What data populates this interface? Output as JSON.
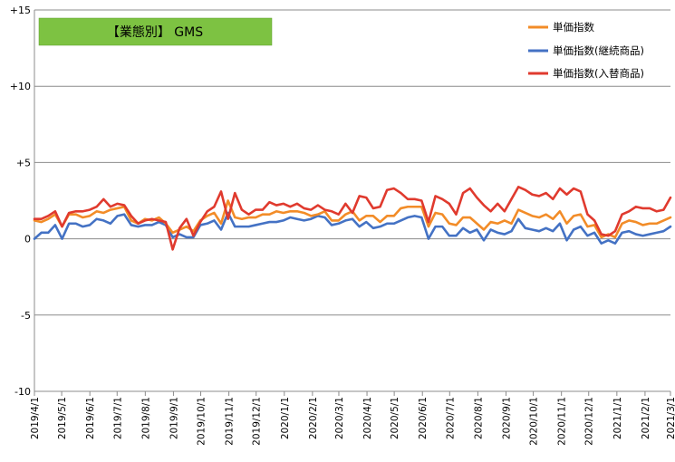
{
  "chart_data": {
    "type": "line",
    "tag_label": "【業態別】 GMS",
    "ylim": [
      -10,
      15
    ],
    "yticks": [
      15,
      10,
      5,
      0,
      -5,
      -10
    ],
    "ytick_labels": [
      "+15",
      "+10",
      "+5",
      "0",
      "-5",
      "-10"
    ],
    "xticks": [
      "2019/4/1",
      "2019/5/1",
      "2019/6/1",
      "2019/7/1",
      "2019/8/1",
      "2019/9/1",
      "2019/10/1",
      "2019/11/1",
      "2019/12/1",
      "2020/1/1",
      "2020/2/1",
      "2020/3/1",
      "2020/4/1",
      "2020/5/1",
      "2020/6/1",
      "2020/7/1",
      "2020/8/1",
      "2020/9/1",
      "2020/10/1",
      "2020/11/1",
      "2020/12/1",
      "2021/1/1",
      "2021/2/1",
      "2021/3/1"
    ],
    "x_start": "2019/4/1",
    "x_end": "2021/3/1",
    "grid": "horizontal",
    "legend_position": "top-right",
    "series": [
      {
        "name": "単価指数",
        "color": "#F28C28",
        "values": [
          1.2,
          1.1,
          1.3,
          1.6,
          0.8,
          1.6,
          1.6,
          1.4,
          1.5,
          1.8,
          1.7,
          1.9,
          2.0,
          2.1,
          1.2,
          1.0,
          1.3,
          1.2,
          1.4,
          1.0,
          0.4,
          0.6,
          0.8,
          0.5,
          1.2,
          1.5,
          1.7,
          1.0,
          2.5,
          1.4,
          1.3,
          1.4,
          1.4,
          1.6,
          1.6,
          1.8,
          1.7,
          1.8,
          1.8,
          1.7,
          1.5,
          1.6,
          1.8,
          1.2,
          1.2,
          1.6,
          1.8,
          1.2,
          1.5,
          1.5,
          1.1,
          1.5,
          1.5,
          2.0,
          2.1,
          2.1,
          2.1,
          0.8,
          1.7,
          1.6,
          1.0,
          0.9,
          1.4,
          1.4,
          1.0,
          0.6,
          1.1,
          1.0,
          1.2,
          1.0,
          1.9,
          1.7,
          1.5,
          1.4,
          1.6,
          1.3,
          1.8,
          1.0,
          1.5,
          1.6,
          0.8,
          0.9,
          0.1,
          0.3,
          0.1,
          1.0,
          1.2,
          1.1,
          0.9,
          1.0,
          1.0,
          1.2,
          1.4
        ]
      },
      {
        "name": "単価指数(継続商品)",
        "color": "#4472C4",
        "values": [
          0.0,
          0.4,
          0.4,
          0.9,
          0.0,
          1.0,
          1.0,
          0.8,
          0.9,
          1.3,
          1.2,
          1.0,
          1.5,
          1.6,
          0.9,
          0.8,
          0.9,
          0.9,
          1.1,
          0.9,
          0.1,
          0.3,
          0.1,
          0.1,
          0.9,
          1.0,
          1.2,
          0.6,
          1.7,
          0.8,
          0.8,
          0.8,
          0.9,
          1.0,
          1.1,
          1.1,
          1.2,
          1.4,
          1.3,
          1.2,
          1.3,
          1.5,
          1.4,
          0.9,
          1.0,
          1.2,
          1.3,
          0.8,
          1.1,
          0.7,
          0.8,
          1.0,
          1.0,
          1.2,
          1.4,
          1.5,
          1.4,
          0.0,
          0.8,
          0.8,
          0.2,
          0.2,
          0.7,
          0.4,
          0.6,
          -0.1,
          0.6,
          0.4,
          0.3,
          0.5,
          1.3,
          0.7,
          0.6,
          0.5,
          0.7,
          0.5,
          1.0,
          -0.1,
          0.6,
          0.8,
          0.2,
          0.4,
          -0.3,
          -0.1,
          -0.3,
          0.4,
          0.5,
          0.3,
          0.2,
          0.3,
          0.4,
          0.5,
          0.8
        ]
      },
      {
        "name": "単価指数(入替商品)",
        "color": "#E03A2E",
        "values": [
          1.3,
          1.3,
          1.5,
          1.8,
          0.8,
          1.7,
          1.8,
          1.8,
          1.9,
          2.1,
          2.6,
          2.1,
          2.3,
          2.2,
          1.5,
          1.0,
          1.2,
          1.3,
          1.2,
          1.1,
          -0.7,
          0.7,
          1.3,
          0.2,
          1.1,
          1.8,
          2.1,
          3.1,
          1.3,
          3.0,
          1.9,
          1.6,
          1.9,
          1.9,
          2.4,
          2.2,
          2.3,
          2.1,
          2.3,
          2.0,
          1.9,
          2.2,
          1.9,
          1.8,
          1.6,
          2.3,
          1.7,
          2.8,
          2.7,
          2.0,
          2.1,
          3.2,
          3.3,
          3.0,
          2.6,
          2.6,
          2.5,
          1.1,
          2.8,
          2.6,
          2.3,
          1.6,
          3.0,
          3.3,
          2.7,
          2.2,
          1.8,
          2.3,
          1.8,
          2.6,
          3.4,
          3.2,
          2.9,
          2.8,
          3.0,
          2.6,
          3.3,
          2.9,
          3.3,
          3.1,
          1.6,
          1.2,
          0.3,
          0.2,
          0.5,
          1.6,
          1.8,
          2.1,
          2.0,
          2.0,
          1.8,
          1.9,
          2.7
        ]
      }
    ]
  }
}
